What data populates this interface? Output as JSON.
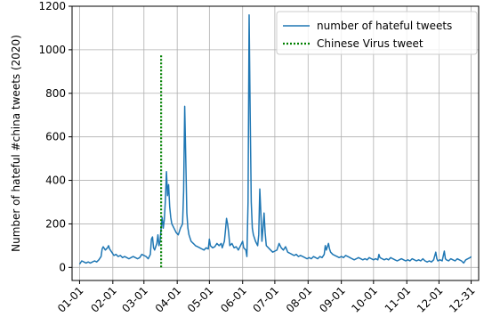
{
  "chart_data": {
    "type": "line",
    "ylabel": "Number of hateful #china tweets (2020)",
    "xlabel": "",
    "ylim": [
      -60,
      1200
    ],
    "yticks": [
      0,
      200,
      400,
      600,
      800,
      1000,
      1200
    ],
    "xlim_day": [
      -7,
      372
    ],
    "xticks": [
      {
        "label": "01-01",
        "day": 0
      },
      {
        "label": "02-01",
        "day": 31
      },
      {
        "label": "03-01",
        "day": 60
      },
      {
        "label": "04-01",
        "day": 91
      },
      {
        "label": "05-01",
        "day": 121
      },
      {
        "label": "06-01",
        "day": 152
      },
      {
        "label": "07-01",
        "day": 182
      },
      {
        "label": "08-01",
        "day": 213
      },
      {
        "label": "09-01",
        "day": 244
      },
      {
        "label": "10-01",
        "day": 274
      },
      {
        "label": "11-01",
        "day": 305
      },
      {
        "label": "12-01",
        "day": 335
      },
      {
        "label": "12-31",
        "day": 365
      }
    ],
    "grid": true,
    "legend_position": "top-right",
    "series": [
      {
        "name": "number of hateful tweets",
        "color": "#1f77b4",
        "style": "solid",
        "points": [
          [
            0,
            15
          ],
          [
            2,
            30
          ],
          [
            4,
            25
          ],
          [
            6,
            20
          ],
          [
            8,
            25
          ],
          [
            10,
            20
          ],
          [
            12,
            25
          ],
          [
            14,
            30
          ],
          [
            16,
            25
          ],
          [
            18,
            35
          ],
          [
            20,
            50
          ],
          [
            21,
            85
          ],
          [
            22,
            95
          ],
          [
            24,
            80
          ],
          [
            26,
            90
          ],
          [
            27,
            100
          ],
          [
            28,
            85
          ],
          [
            30,
            70
          ],
          [
            32,
            55
          ],
          [
            34,
            60
          ],
          [
            36,
            50
          ],
          [
            38,
            55
          ],
          [
            40,
            45
          ],
          [
            42,
            50
          ],
          [
            44,
            45
          ],
          [
            46,
            40
          ],
          [
            48,
            45
          ],
          [
            50,
            50
          ],
          [
            52,
            45
          ],
          [
            54,
            40
          ],
          [
            56,
            45
          ],
          [
            58,
            60
          ],
          [
            60,
            55
          ],
          [
            62,
            50
          ],
          [
            64,
            40
          ],
          [
            66,
            60
          ],
          [
            67,
            130
          ],
          [
            68,
            140
          ],
          [
            69,
            90
          ],
          [
            70,
            80
          ],
          [
            72,
            110
          ],
          [
            73,
            150
          ],
          [
            74,
            100
          ],
          [
            75,
            120
          ],
          [
            76,
            180
          ],
          [
            77,
            230
          ],
          [
            78,
            180
          ],
          [
            79,
            220
          ],
          [
            80,
            310
          ],
          [
            81,
            440
          ],
          [
            82,
            330
          ],
          [
            83,
            380
          ],
          [
            84,
            280
          ],
          [
            85,
            230
          ],
          [
            86,
            200
          ],
          [
            88,
            180
          ],
          [
            90,
            160
          ],
          [
            92,
            150
          ],
          [
            94,
            180
          ],
          [
            96,
            200
          ],
          [
            97,
            350
          ],
          [
            98,
            740
          ],
          [
            99,
            500
          ],
          [
            100,
            250
          ],
          [
            101,
            180
          ],
          [
            102,
            150
          ],
          [
            104,
            120
          ],
          [
            106,
            110
          ],
          [
            108,
            100
          ],
          [
            110,
            95
          ],
          [
            112,
            90
          ],
          [
            114,
            85
          ],
          [
            116,
            80
          ],
          [
            118,
            90
          ],
          [
            120,
            85
          ],
          [
            121,
            130
          ],
          [
            122,
            100
          ],
          [
            124,
            90
          ],
          [
            126,
            95
          ],
          [
            128,
            110
          ],
          [
            130,
            100
          ],
          [
            132,
            110
          ],
          [
            133,
            90
          ],
          [
            135,
            120
          ],
          [
            136,
            170
          ],
          [
            137,
            225
          ],
          [
            138,
            200
          ],
          [
            139,
            160
          ],
          [
            140,
            100
          ],
          [
            142,
            110
          ],
          [
            144,
            90
          ],
          [
            146,
            95
          ],
          [
            148,
            80
          ],
          [
            150,
            100
          ],
          [
            152,
            120
          ],
          [
            153,
            90
          ],
          [
            155,
            80
          ],
          [
            156,
            50
          ],
          [
            157,
            300
          ],
          [
            158,
            1160
          ],
          [
            159,
            700
          ],
          [
            160,
            300
          ],
          [
            161,
            180
          ],
          [
            162,
            150
          ],
          [
            164,
            120
          ],
          [
            166,
            100
          ],
          [
            167,
            150
          ],
          [
            168,
            360
          ],
          [
            169,
            250
          ],
          [
            170,
            120
          ],
          [
            171,
            180
          ],
          [
            172,
            250
          ],
          [
            173,
            160
          ],
          [
            174,
            100
          ],
          [
            176,
            90
          ],
          [
            178,
            80
          ],
          [
            180,
            70
          ],
          [
            182,
            75
          ],
          [
            184,
            80
          ],
          [
            186,
            110
          ],
          [
            188,
            90
          ],
          [
            190,
            80
          ],
          [
            192,
            95
          ],
          [
            194,
            70
          ],
          [
            196,
            65
          ],
          [
            198,
            60
          ],
          [
            200,
            55
          ],
          [
            202,
            60
          ],
          [
            204,
            50
          ],
          [
            206,
            55
          ],
          [
            208,
            50
          ],
          [
            210,
            45
          ],
          [
            212,
            40
          ],
          [
            214,
            45
          ],
          [
            216,
            40
          ],
          [
            218,
            50
          ],
          [
            220,
            45
          ],
          [
            222,
            40
          ],
          [
            224,
            50
          ],
          [
            226,
            45
          ],
          [
            228,
            60
          ],
          [
            229,
            100
          ],
          [
            230,
            80
          ],
          [
            232,
            110
          ],
          [
            233,
            85
          ],
          [
            234,
            70
          ],
          [
            236,
            60
          ],
          [
            238,
            55
          ],
          [
            240,
            50
          ],
          [
            242,
            45
          ],
          [
            244,
            50
          ],
          [
            246,
            45
          ],
          [
            248,
            55
          ],
          [
            250,
            50
          ],
          [
            252,
            45
          ],
          [
            254,
            40
          ],
          [
            256,
            35
          ],
          [
            258,
            40
          ],
          [
            260,
            45
          ],
          [
            262,
            40
          ],
          [
            264,
            35
          ],
          [
            266,
            40
          ],
          [
            268,
            35
          ],
          [
            270,
            45
          ],
          [
            272,
            40
          ],
          [
            274,
            35
          ],
          [
            276,
            40
          ],
          [
            278,
            35
          ],
          [
            279,
            60
          ],
          [
            280,
            45
          ],
          [
            282,
            40
          ],
          [
            284,
            35
          ],
          [
            286,
            40
          ],
          [
            288,
            35
          ],
          [
            290,
            45
          ],
          [
            292,
            40
          ],
          [
            294,
            35
          ],
          [
            296,
            30
          ],
          [
            298,
            35
          ],
          [
            300,
            40
          ],
          [
            302,
            35
          ],
          [
            304,
            30
          ],
          [
            306,
            35
          ],
          [
            308,
            30
          ],
          [
            310,
            40
          ],
          [
            312,
            35
          ],
          [
            314,
            30
          ],
          [
            316,
            35
          ],
          [
            318,
            30
          ],
          [
            320,
            40
          ],
          [
            322,
            30
          ],
          [
            324,
            25
          ],
          [
            326,
            30
          ],
          [
            328,
            25
          ],
          [
            330,
            35
          ],
          [
            332,
            70
          ],
          [
            333,
            40
          ],
          [
            334,
            30
          ],
          [
            336,
            35
          ],
          [
            338,
            30
          ],
          [
            340,
            75
          ],
          [
            341,
            40
          ],
          [
            342,
            35
          ],
          [
            344,
            30
          ],
          [
            346,
            40
          ],
          [
            348,
            35
          ],
          [
            350,
            30
          ],
          [
            352,
            40
          ],
          [
            354,
            35
          ],
          [
            356,
            30
          ],
          [
            358,
            20
          ],
          [
            360,
            35
          ],
          [
            362,
            40
          ],
          [
            364,
            45
          ],
          [
            365,
            50
          ]
        ]
      },
      {
        "name": "Chinese Virus tweet",
        "color": "#008000",
        "style": "dotted",
        "points": [
          [
            76,
            0
          ],
          [
            76,
            980
          ]
        ]
      }
    ]
  }
}
